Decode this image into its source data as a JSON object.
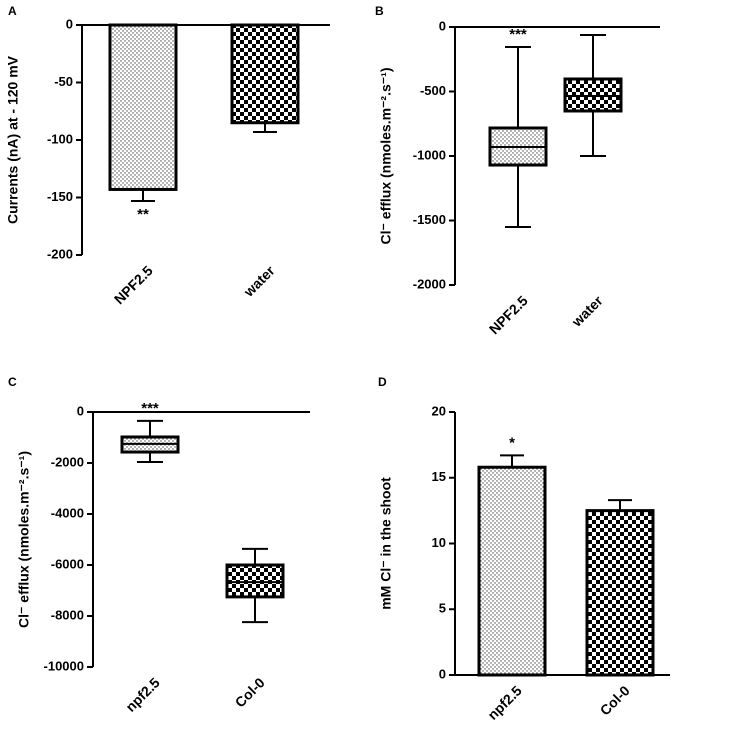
{
  "chart_data": [
    {
      "type": "bar",
      "panel": "A",
      "ylabel": "Currents (nA) at - 120 mV",
      "categories": [
        "NPF2.5",
        "water"
      ],
      "values": [
        -143,
        -85
      ],
      "errors": [
        10,
        8
      ],
      "patterns": [
        "dots",
        "checks"
      ],
      "ylim": [
        -200,
        0
      ],
      "yticks": [
        0,
        -50,
        -100,
        -150,
        -200
      ],
      "annotations": [
        {
          "category": "NPF2.5",
          "text": "**"
        }
      ]
    },
    {
      "type": "box",
      "panel": "B",
      "ylabel": "Cl⁻ efflux (nmoles.m⁻².s⁻¹)",
      "categories": [
        "NPF2.5",
        "water"
      ],
      "min": [
        -1550,
        -1000
      ],
      "q1": [
        -1070,
        -651
      ],
      "median": [
        -930,
        -535
      ],
      "q3": [
        -783,
        -403
      ],
      "max": [
        -155,
        -62
      ],
      "patterns": [
        "dots",
        "checks"
      ],
      "ylim": [
        -2000,
        0
      ],
      "yticks": [
        0,
        -500,
        -1000,
        -1500,
        -2000
      ],
      "annotations": [
        {
          "category": "NPF2.5",
          "text": "***"
        }
      ]
    },
    {
      "type": "box",
      "panel": "C",
      "ylabel": "Cl⁻ efflux (nmoles.m⁻².s⁻¹)",
      "categories": [
        "npf2.5",
        "Col-0"
      ],
      "min": [
        -1960,
        -8240
      ],
      "q1": [
        -1570,
        -7250
      ],
      "median": [
        -1250,
        -6670
      ],
      "q3": [
        -980,
        -6000
      ],
      "max": [
        -350,
        -5370
      ],
      "patterns": [
        "dots",
        "checks"
      ],
      "ylim": [
        -10000,
        0
      ],
      "yticks": [
        0,
        -2000,
        -4000,
        -6000,
        -8000,
        -10000
      ],
      "annotations": [
        {
          "category": "npf2.5",
          "text": "***"
        }
      ]
    },
    {
      "type": "bar",
      "panel": "D",
      "ylabel": "mM Cl⁻ in the shoot",
      "categories": [
        "npf2.5",
        "Col-0"
      ],
      "values": [
        15.8,
        12.5
      ],
      "errors": [
        0.9,
        0.8
      ],
      "patterns": [
        "dots",
        "checks"
      ],
      "ylim": [
        0,
        20
      ],
      "yticks": [
        0,
        5,
        10,
        15,
        20
      ],
      "annotations": [
        {
          "category": "npf2.5",
          "text": "*"
        }
      ]
    }
  ]
}
